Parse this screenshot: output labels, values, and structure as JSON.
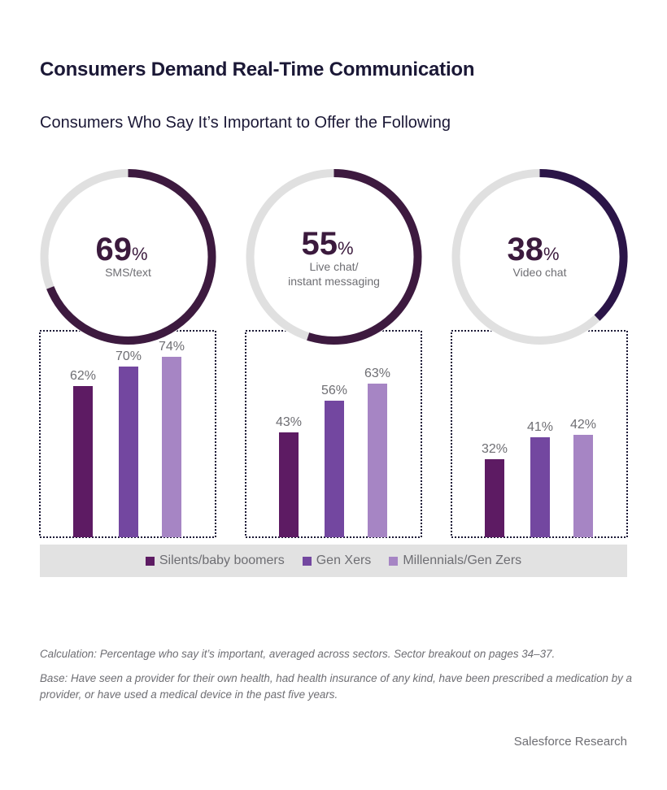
{
  "header": {
    "title": "Consumers Demand Real-Time Communication",
    "subtitle": "Consumers Who Say It’s Important to Offer the Following"
  },
  "colors": {
    "ring_fill": "#3d1a3f",
    "ring_fill_video": "#2b1548",
    "ring_track": "#e0e0e0",
    "box_border": "#1b1836",
    "silents": "#5d1b63",
    "genx": "#7347a0",
    "millennials": "#a685c4",
    "label_gray": "#6e6e73",
    "pct_dark": "#3b1a3d"
  },
  "chart_data": {
    "type": "bar",
    "title": "Consumers Who Say It’s Important to Offer the Following",
    "xlabel": "",
    "ylabel": "",
    "ylim": [
      0,
      100
    ],
    "grid": false,
    "legend_position": "bottom",
    "series_names": [
      "Silents/baby boomers",
      "Gen Xers",
      "Millennials/Gen Zers"
    ],
    "panels": [
      {
        "channel": "SMS/text",
        "channel_lines": [
          "SMS/text"
        ],
        "overall": 69,
        "overall_label": "69",
        "values": [
          62,
          70,
          74
        ],
        "value_labels": [
          "62%",
          "70%",
          "74%"
        ]
      },
      {
        "channel": "Live chat/ instant messaging",
        "channel_lines": [
          "Live chat/",
          "instant messaging"
        ],
        "overall": 55,
        "overall_label": "55",
        "values": [
          43,
          56,
          63
        ],
        "value_labels": [
          "43%",
          "56%",
          "63%"
        ]
      },
      {
        "channel": "Video chat",
        "channel_lines": [
          "Video chat"
        ],
        "overall": 38,
        "overall_label": "38",
        "values": [
          32,
          41,
          42
        ],
        "value_labels": [
          "32%",
          "41%",
          "42%"
        ]
      }
    ],
    "percent_sign": "%"
  },
  "legend": {
    "items": [
      {
        "label": "Silents/baby boomers",
        "color_key": "silents"
      },
      {
        "label": "Gen Xers",
        "color_key": "genx"
      },
      {
        "label": "Millennials/Gen Zers",
        "color_key": "millennials"
      }
    ]
  },
  "footnotes": {
    "calculation": "Calculation: Percentage who say it’s important, averaged across sectors. Sector breakout on pages 34–37.",
    "base": "Base: Have seen a provider for their own health, had health insurance of any kind, have been prescribed a medication by a provider, or have used a medical device in the past five years."
  },
  "source": "Salesforce Research"
}
